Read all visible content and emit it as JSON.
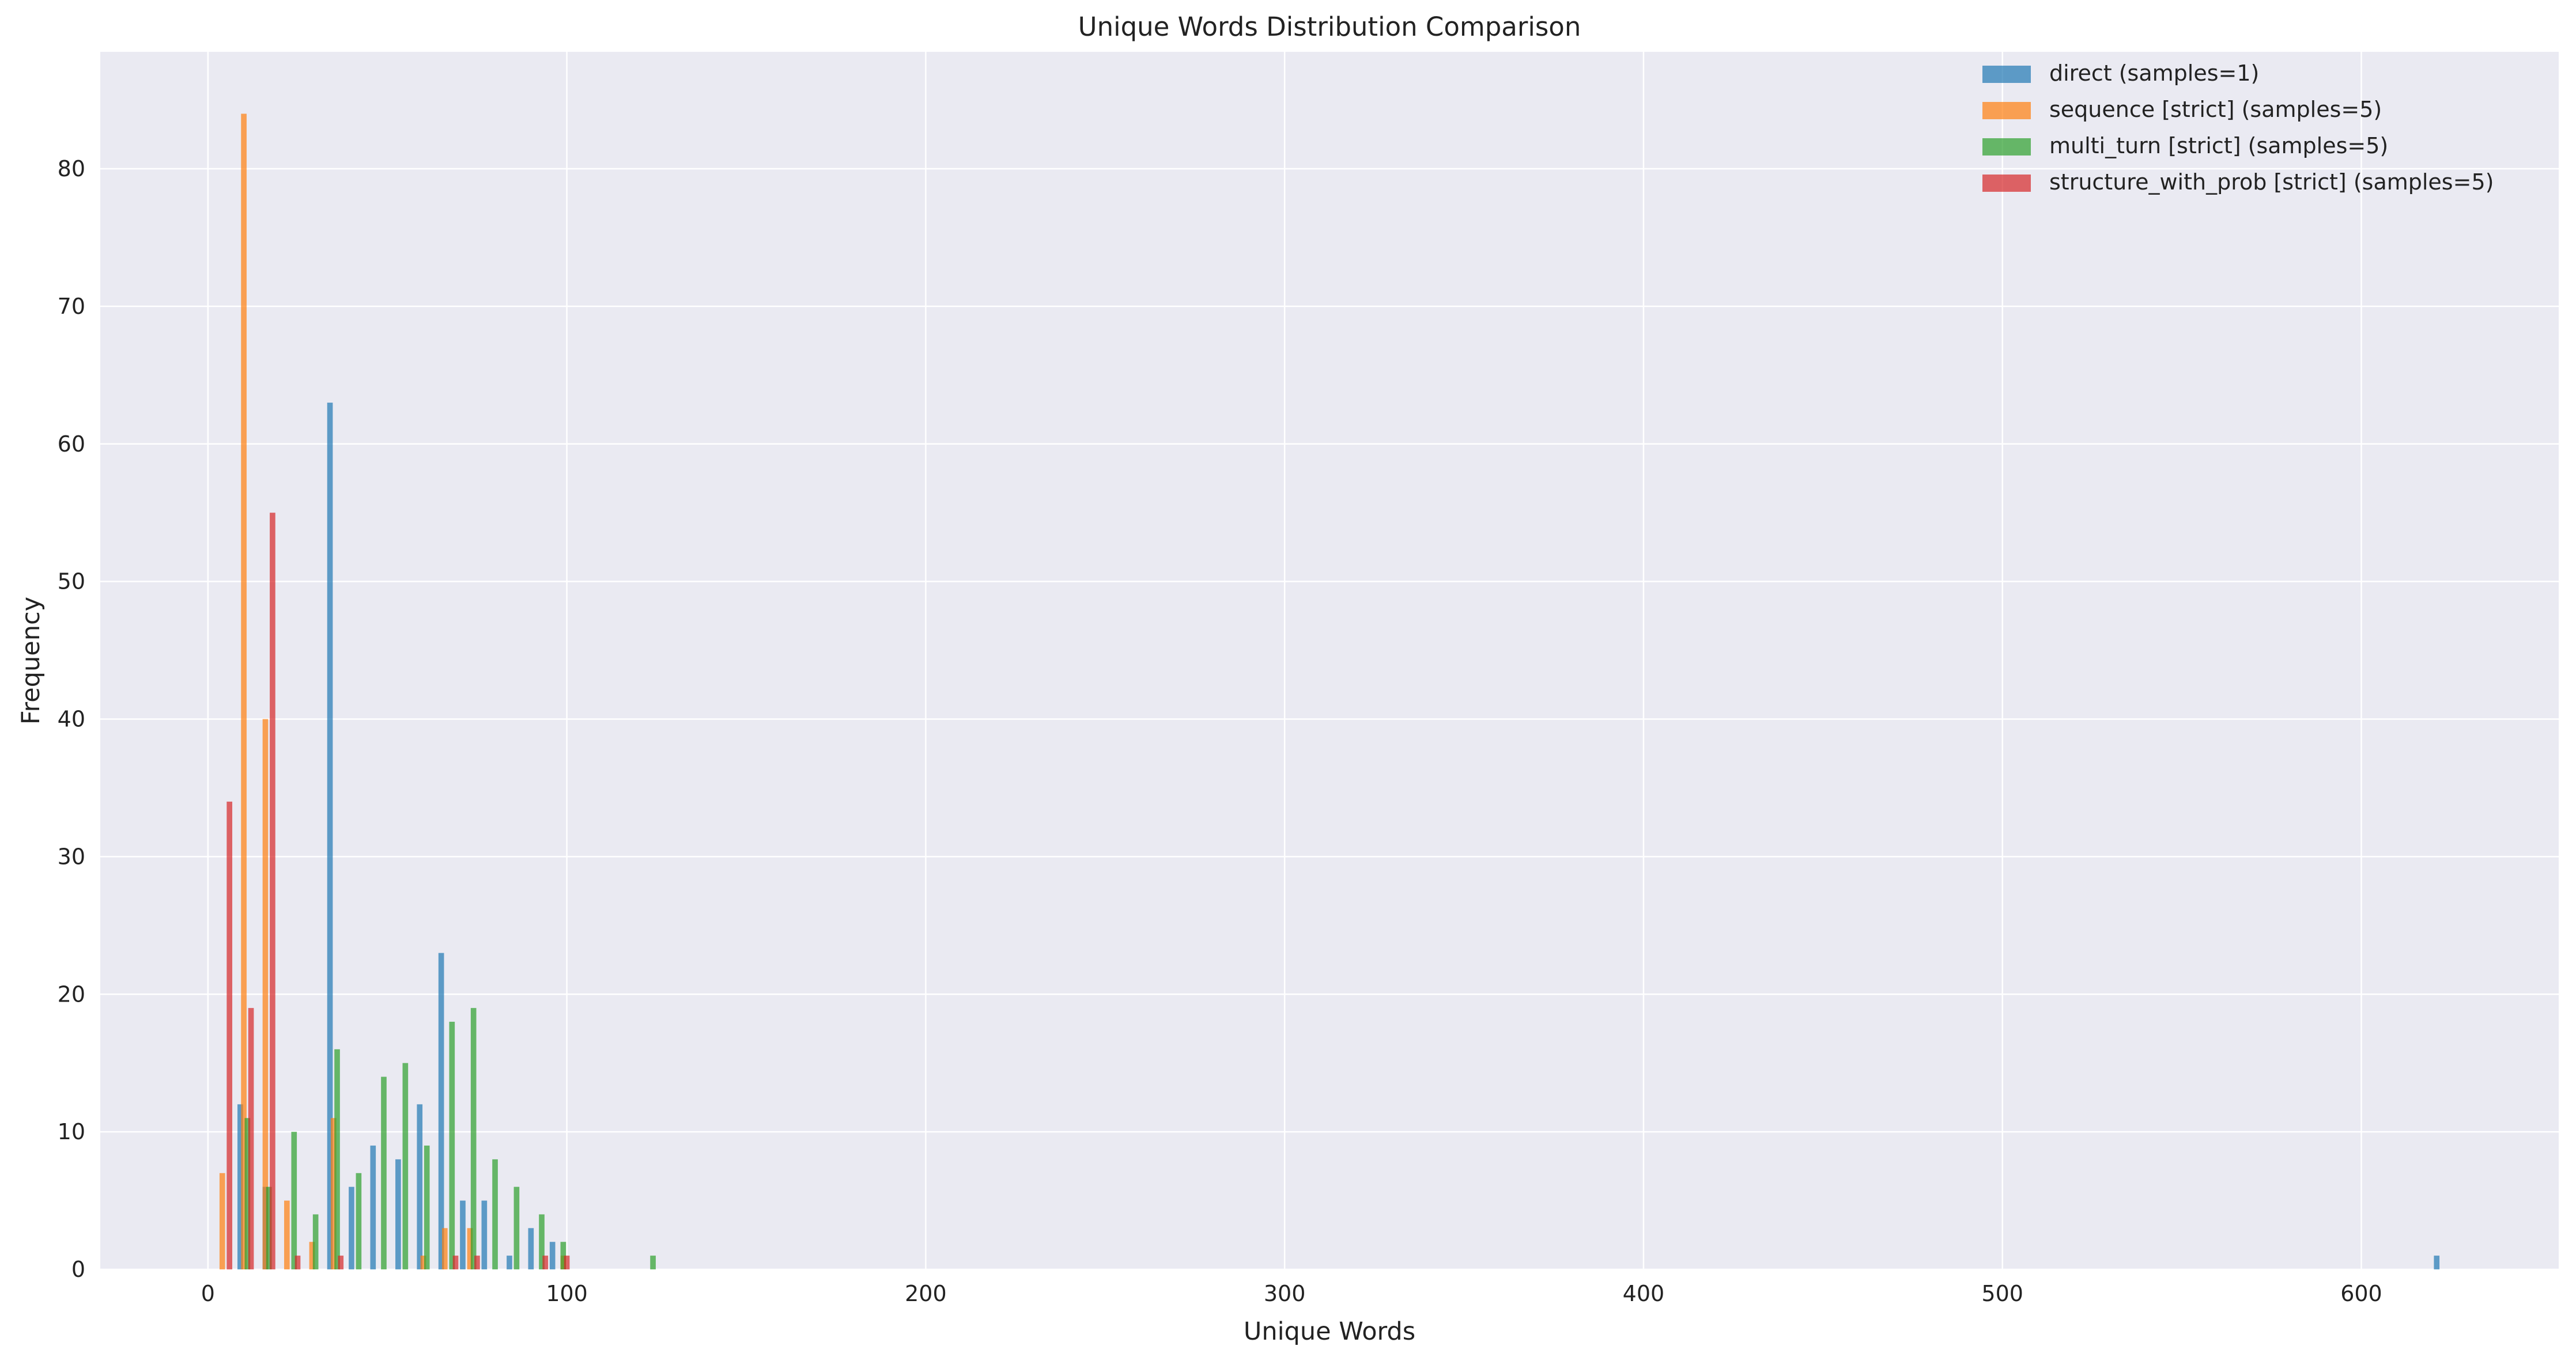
{
  "chart_data": {
    "type": "bar",
    "title": "Unique Words Distribution Comparison",
    "xlabel": "Unique Words",
    "ylabel": "Frequency",
    "xlim": [
      -30,
      655
    ],
    "ylim": [
      0,
      88.5
    ],
    "xticks": [
      0,
      100,
      200,
      300,
      400,
      500,
      600
    ],
    "yticks": [
      0,
      10,
      20,
      30,
      40,
      50,
      60,
      70,
      80
    ],
    "grid": true,
    "legend_position": "top-right",
    "bar_width": 1.55,
    "series": [
      {
        "name": "direct (samples=1)",
        "color": "#1f77b4",
        "bars": [
          {
            "x": 9,
            "y": 12
          },
          {
            "x": 16,
            "y": 6
          },
          {
            "x": 34,
            "y": 63
          },
          {
            "x": 40,
            "y": 6
          },
          {
            "x": 46,
            "y": 9
          },
          {
            "x": 53,
            "y": 8
          },
          {
            "x": 59,
            "y": 12
          },
          {
            "x": 65,
            "y": 23
          },
          {
            "x": 71,
            "y": 5
          },
          {
            "x": 77,
            "y": 5
          },
          {
            "x": 84,
            "y": 1
          },
          {
            "x": 90,
            "y": 3
          },
          {
            "x": 96,
            "y": 2
          },
          {
            "x": 621,
            "y": 1
          }
        ]
      },
      {
        "name": "sequence [strict] (samples=5)",
        "color": "#ff7f0e",
        "bars": [
          {
            "x": 4,
            "y": 7
          },
          {
            "x": 10,
            "y": 84
          },
          {
            "x": 16,
            "y": 40
          },
          {
            "x": 22,
            "y": 5
          },
          {
            "x": 29,
            "y": 2
          },
          {
            "x": 35,
            "y": 11
          },
          {
            "x": 60,
            "y": 1
          },
          {
            "x": 66,
            "y": 3
          },
          {
            "x": 73,
            "y": 3
          },
          {
            "x": 99,
            "y": 1
          }
        ]
      },
      {
        "name": "multi_turn [strict] (samples=5)",
        "color": "#2ca02c",
        "bars": [
          {
            "x": 11,
            "y": 11
          },
          {
            "x": 17,
            "y": 6
          },
          {
            "x": 24,
            "y": 10
          },
          {
            "x": 30,
            "y": 4
          },
          {
            "x": 36,
            "y": 16
          },
          {
            "x": 42,
            "y": 7
          },
          {
            "x": 49,
            "y": 14
          },
          {
            "x": 55,
            "y": 15
          },
          {
            "x": 61,
            "y": 9
          },
          {
            "x": 68,
            "y": 18
          },
          {
            "x": 74,
            "y": 19
          },
          {
            "x": 80,
            "y": 8
          },
          {
            "x": 86,
            "y": 6
          },
          {
            "x": 93,
            "y": 4
          },
          {
            "x": 99,
            "y": 2
          },
          {
            "x": 124,
            "y": 1
          }
        ]
      },
      {
        "name": "structure_with_prob [strict] (samples=5)",
        "color": "#d62728",
        "bars": [
          {
            "x": 6,
            "y": 34
          },
          {
            "x": 12,
            "y": 19
          },
          {
            "x": 18,
            "y": 55
          },
          {
            "x": 25,
            "y": 1
          },
          {
            "x": 37,
            "y": 1
          },
          {
            "x": 69,
            "y": 1
          },
          {
            "x": 75,
            "y": 1
          },
          {
            "x": 94,
            "y": 1
          },
          {
            "x": 100,
            "y": 1
          }
        ]
      }
    ]
  }
}
